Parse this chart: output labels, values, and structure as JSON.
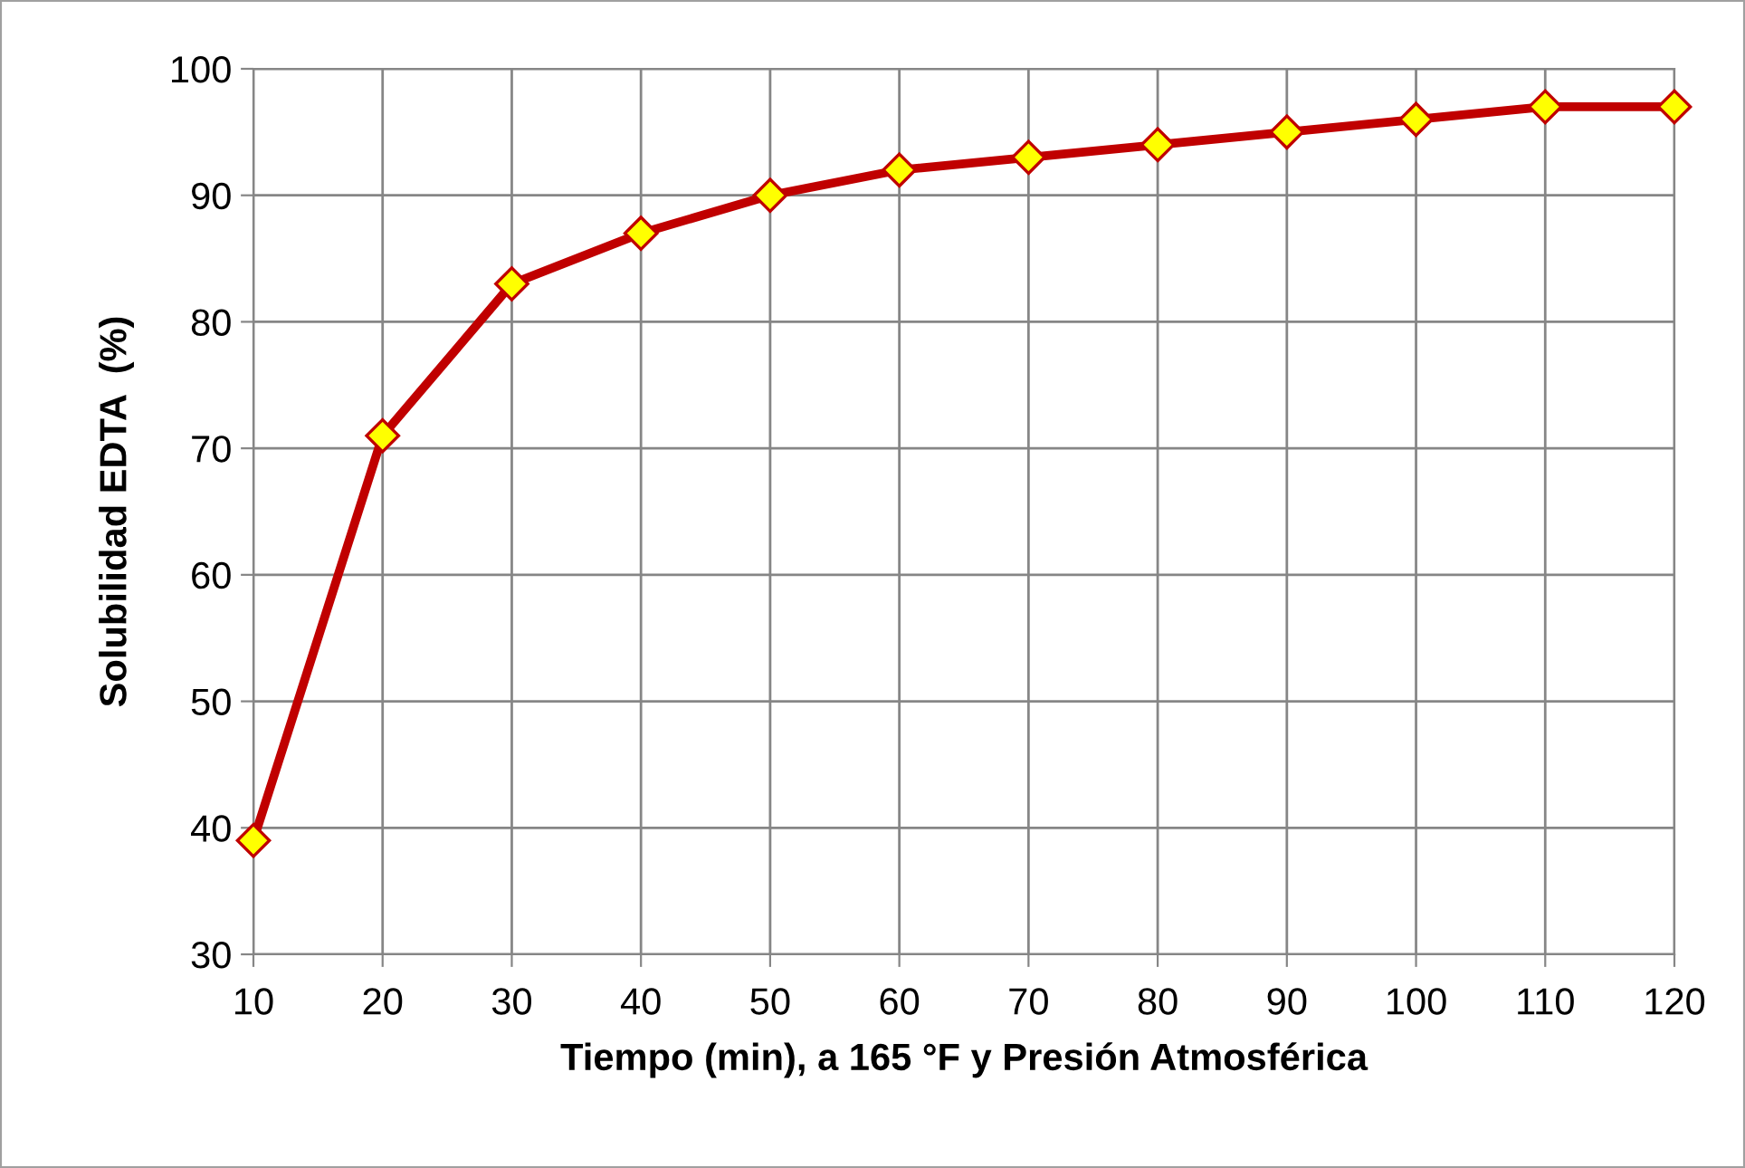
{
  "chart_data": {
    "type": "line",
    "xlabel": "Tiempo (min), a 165 °F y Presión Atmosférica",
    "ylabel": "Solubilidad EDTA  (%)",
    "x": [
      10,
      20,
      30,
      40,
      50,
      60,
      70,
      80,
      90,
      100,
      110,
      120
    ],
    "series": [
      {
        "color": "#c00000",
        "values": [
          39,
          71,
          83,
          87,
          90,
          92,
          93,
          94,
          95,
          96,
          97,
          97
        ]
      }
    ],
    "xlim": [
      10,
      120
    ],
    "xticks": [
      10,
      20,
      30,
      40,
      50,
      60,
      70,
      80,
      90,
      100,
      110,
      120
    ],
    "ylim": [
      30,
      100
    ],
    "yticks": [
      30,
      40,
      50,
      60,
      70,
      80,
      90,
      100
    ],
    "grid": true,
    "marker": "diamond",
    "line_style": "solid",
    "legend": false
  }
}
